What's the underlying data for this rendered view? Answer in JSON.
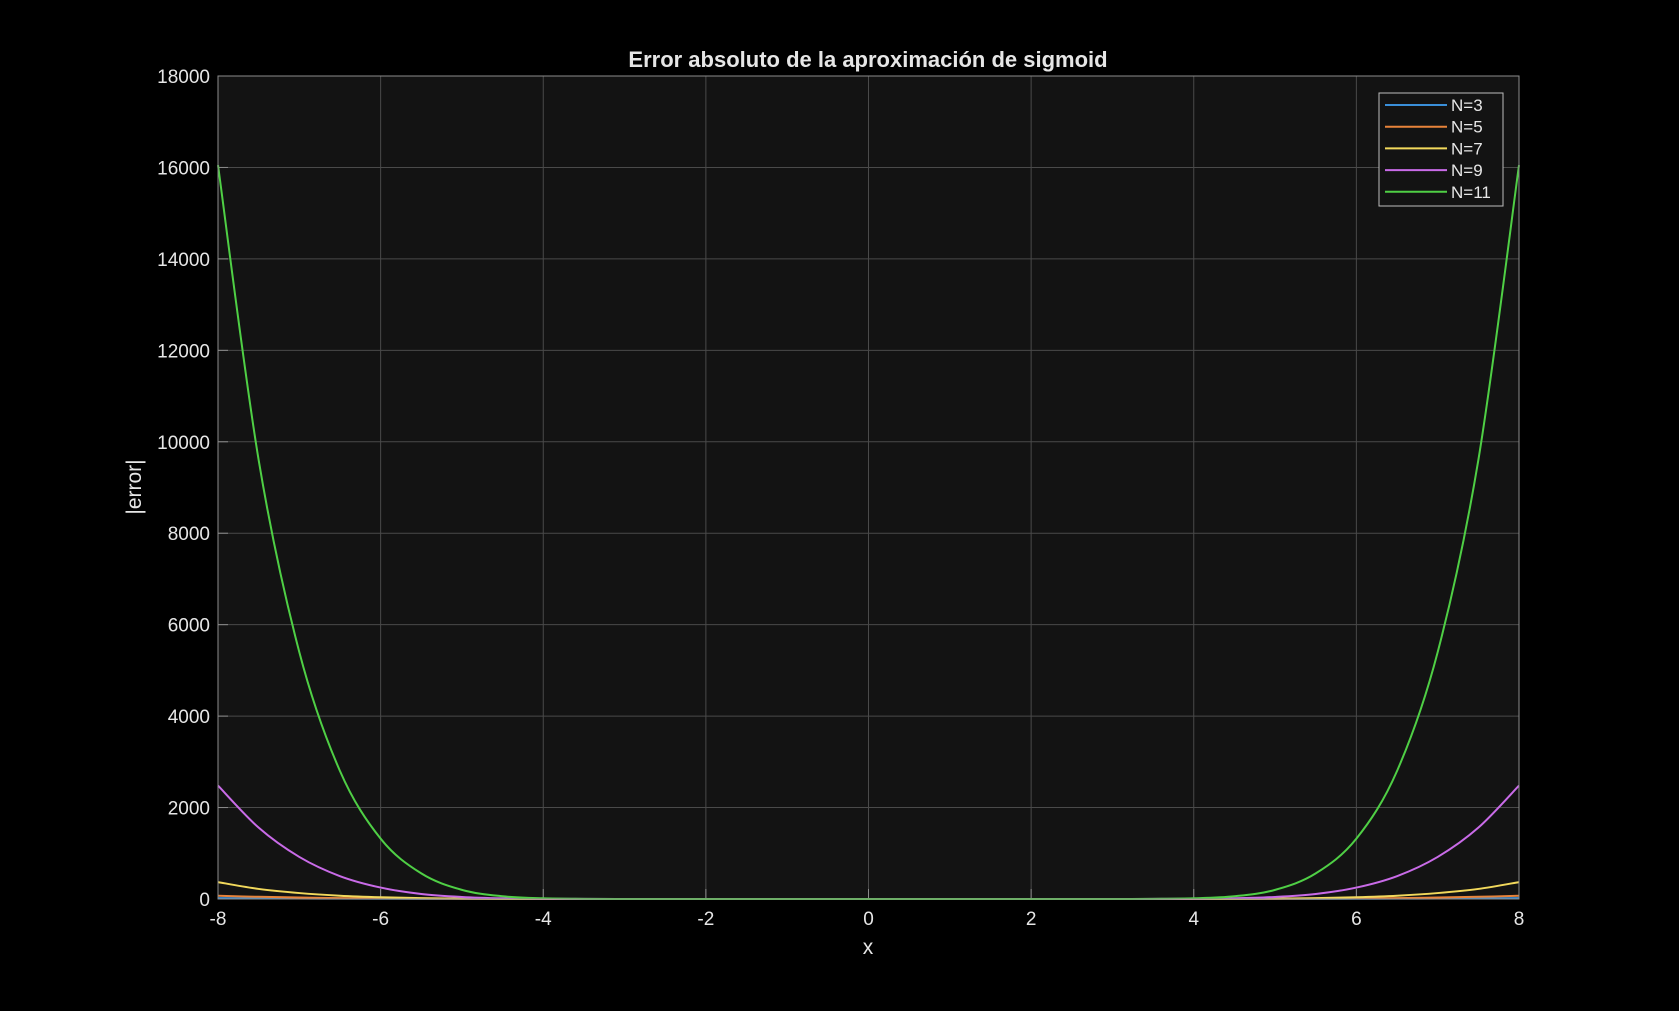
{
  "chart_data": {
    "type": "line",
    "title": "Error absoluto de la aproximación de sigmoid",
    "xlabel": "x",
    "ylabel": "|error|",
    "xlim": [
      -8,
      8
    ],
    "ylim": [
      0,
      18000
    ],
    "xticks": [
      "-8",
      "-6",
      "-4",
      "-2",
      "0",
      "2",
      "4",
      "6",
      "8"
    ],
    "yticks": [
      "0",
      "2000",
      "4000",
      "6000",
      "8000",
      "10000",
      "12000",
      "14000",
      "16000",
      "18000"
    ],
    "grid": true,
    "legend_position": "top-right",
    "x": [
      -8,
      -7.5,
      -7,
      -6.5,
      -6,
      -5.5,
      -5,
      -4.5,
      -4,
      -3.5,
      -3,
      -2.5,
      -2,
      -1.5,
      -1,
      -0.5,
      0,
      0.5,
      1,
      1.5,
      2,
      2.5,
      3,
      3.5,
      4,
      4.5,
      5,
      5.5,
      6,
      6.5,
      7,
      7.5,
      8
    ],
    "series": [
      {
        "name": "N=3",
        "color": "#3a8fd9",
        "values": [
          20,
          15,
          11,
          7,
          5,
          3,
          2,
          1,
          0.5,
          0.3,
          0.1,
          0,
          0,
          0,
          0,
          0,
          0,
          0,
          0,
          0,
          0,
          0,
          0.1,
          0.3,
          0.5,
          1,
          2,
          3,
          5,
          7,
          11,
          15,
          20
        ]
      },
      {
        "name": "N=5",
        "color": "#e8833a",
        "values": [
          70,
          48,
          32,
          20,
          12,
          7,
          4,
          2,
          1,
          0.4,
          0.1,
          0,
          0,
          0,
          0,
          0,
          0,
          0,
          0,
          0,
          0,
          0,
          0.1,
          0.4,
          1,
          2,
          4,
          7,
          12,
          20,
          32,
          48,
          70
        ]
      },
      {
        "name": "N=7",
        "color": "#f2d95c",
        "values": [
          370,
          220,
          130,
          72,
          38,
          18,
          8,
          3,
          1,
          0.3,
          0.1,
          0,
          0,
          0,
          0,
          0,
          0,
          0,
          0,
          0,
          0,
          0,
          0.1,
          0.3,
          1,
          3,
          8,
          18,
          38,
          72,
          130,
          220,
          370
        ]
      },
      {
        "name": "N=9",
        "color": "#c96be8",
        "values": [
          2480,
          1560,
          920,
          500,
          250,
          110,
          45,
          15,
          5,
          1.5,
          0.3,
          0,
          0,
          0,
          0,
          0,
          0,
          0,
          0,
          0,
          0,
          0,
          0.3,
          1.5,
          5,
          15,
          45,
          110,
          250,
          500,
          920,
          1560,
          2480
        ]
      },
      {
        "name": "N=11",
        "color": "#4fcf45",
        "values": [
          16050,
          9600,
          5400,
          2800,
          1320,
          560,
          200,
          60,
          15,
          3,
          0.5,
          0,
          0,
          0,
          0,
          0,
          0,
          0,
          0,
          0,
          0,
          0,
          0.5,
          3,
          15,
          60,
          200,
          560,
          1320,
          2800,
          5400,
          9600,
          16050
        ]
      }
    ]
  }
}
